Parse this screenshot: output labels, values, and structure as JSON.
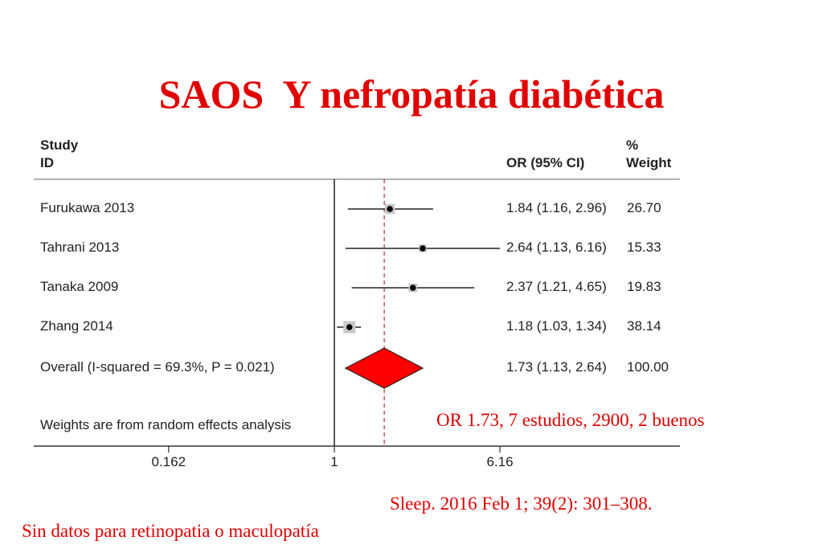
{
  "slide": {
    "title": "SAOS  Y nefropatía diabética",
    "summary_note": "OR 1.73, 7 estudios, 2900, 2 buenos",
    "citation": "Sleep. 2016 Feb 1; 39(2): 301–308.",
    "footnote": "Sin datos para retinopatia o maculopatía"
  },
  "chart_data": {
    "type": "forest",
    "columns": {
      "study": [
        "Study",
        "ID"
      ],
      "or": "OR (95% CI)",
      "weight": [
        "%",
        "Weight"
      ]
    },
    "studies": [
      {
        "id": "Furukawa 2013",
        "or": 1.84,
        "lo": 1.16,
        "hi": 2.96,
        "label": "1.84 (1.16, 2.96)",
        "weight": "26.70"
      },
      {
        "id": "Tahrani 2013",
        "or": 2.64,
        "lo": 1.13,
        "hi": 6.16,
        "label": "2.64 (1.13, 6.16)",
        "weight": "15.33"
      },
      {
        "id": "Tanaka 2009",
        "or": 2.37,
        "lo": 1.21,
        "hi": 4.65,
        "label": "2.37 (1.21, 4.65)",
        "weight": "19.83"
      },
      {
        "id": "Zhang 2014",
        "or": 1.18,
        "lo": 1.03,
        "hi": 1.34,
        "label": "1.18 (1.03, 1.34)",
        "weight": "38.14"
      }
    ],
    "overall": {
      "id": "Overall  (I-squared = 69.3%, P = 0.021)",
      "or": 1.73,
      "lo": 1.13,
      "hi": 2.64,
      "label": "1.73 (1.13, 2.64)",
      "weight": "100.00"
    },
    "note": "Weights are from random effects analysis",
    "x_ticks": [
      {
        "value": 0.162,
        "label": "0.162"
      },
      {
        "value": 1,
        "label": "1"
      },
      {
        "value": 6.16,
        "label": "6.16"
      }
    ],
    "x_scale": "log",
    "reference_line": 1,
    "colors": {
      "overall_diamond": "#ff0000",
      "title": "#e00000"
    }
  }
}
